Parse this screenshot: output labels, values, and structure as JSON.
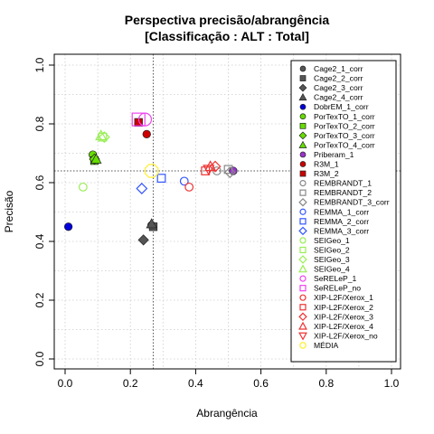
{
  "chart_data": {
    "type": "scatter",
    "title": "Perspectiva precisão/abrangência",
    "subtitle": "[Classificação : ALT : Total]",
    "xlabel": "Abrangência",
    "ylabel": "Precisão",
    "xlim": [
      0,
      1
    ],
    "ylim": [
      0,
      1
    ],
    "xticks": [
      "0.0",
      "0.2",
      "0.4",
      "0.6",
      "0.8",
      "1.0"
    ],
    "yticks": [
      "0.0",
      "0.2",
      "0.4",
      "0.6",
      "0.8",
      "1.0"
    ],
    "grid": true,
    "legend_position": "right",
    "reference_lines": {
      "x": 0.27,
      "y": 0.64
    },
    "series": [
      {
        "name": "Cage2_1_corr",
        "shape": "circle",
        "filled": true,
        "color": "#555555",
        "points": [
          [
            0.265,
            0.455
          ]
        ]
      },
      {
        "name": "Cage2_2_corr",
        "shape": "square",
        "filled": true,
        "color": "#555555",
        "points": [
          [
            0.27,
            0.45
          ]
        ]
      },
      {
        "name": "Cage2_3_corr",
        "shape": "diamond",
        "filled": true,
        "color": "#555555",
        "points": [
          [
            0.24,
            0.405
          ]
        ]
      },
      {
        "name": "Cage2_4_corr",
        "shape": "triangle",
        "filled": true,
        "color": "#555555",
        "points": [
          [
            0.265,
            0.46
          ]
        ]
      },
      {
        "name": "DobrEM_1_corr",
        "shape": "circle",
        "filled": true,
        "color": "#0000dd",
        "points": [
          [
            0.01,
            0.45
          ]
        ]
      },
      {
        "name": "PorTexTO_1_corr",
        "shape": "circle",
        "filled": true,
        "color": "#66dd00",
        "points": [
          [
            0.085,
            0.695
          ]
        ]
      },
      {
        "name": "PorTexTO_2_corr",
        "shape": "square",
        "filled": true,
        "color": "#66dd00",
        "points": [
          [
            0.09,
            0.675
          ]
        ]
      },
      {
        "name": "PorTexTO_3_corr",
        "shape": "diamond",
        "filled": true,
        "color": "#66dd00",
        "points": [
          [
            0.09,
            0.68
          ]
        ]
      },
      {
        "name": "PorTexTO_4_corr",
        "shape": "triangle",
        "filled": true,
        "color": "#66dd00",
        "points": [
          [
            0.095,
            0.68
          ]
        ]
      },
      {
        "name": "Priberam_1",
        "shape": "circle",
        "filled": true,
        "color": "#9933cc",
        "points": [
          [
            0.515,
            0.64
          ]
        ]
      },
      {
        "name": "R3M_1",
        "shape": "circle",
        "filled": true,
        "color": "#cc0000",
        "points": [
          [
            0.25,
            0.765
          ]
        ]
      },
      {
        "name": "R3M_2",
        "shape": "square",
        "filled": true,
        "color": "#cc0000",
        "points": [
          [
            0.225,
            0.805
          ]
        ]
      },
      {
        "name": "REMBRANDT_1",
        "shape": "circle",
        "filled": false,
        "color": "#888888",
        "points": [
          [
            0.465,
            0.64
          ]
        ]
      },
      {
        "name": "REMBRANDT_2",
        "shape": "square",
        "filled": false,
        "color": "#888888",
        "points": [
          [
            0.5,
            0.645
          ]
        ]
      },
      {
        "name": "REMBRANDT_3_corr",
        "shape": "diamond",
        "filled": false,
        "color": "#888888",
        "points": [
          [
            0.505,
            0.635
          ]
        ]
      },
      {
        "name": "REMMA_1_corr",
        "shape": "circle",
        "filled": false,
        "color": "#3355ff",
        "points": [
          [
            0.365,
            0.605
          ]
        ]
      },
      {
        "name": "REMMA_2_corr",
        "shape": "square",
        "filled": false,
        "color": "#3355ff",
        "points": [
          [
            0.295,
            0.615
          ]
        ]
      },
      {
        "name": "REMMA_3_corr",
        "shape": "diamond",
        "filled": false,
        "color": "#3355ff",
        "points": [
          [
            0.235,
            0.58
          ]
        ]
      },
      {
        "name": "SEIGeo_1",
        "shape": "circle",
        "filled": false,
        "color": "#99ee55",
        "points": [
          [
            0.055,
            0.585
          ]
        ]
      },
      {
        "name": "SEIGeo_2",
        "shape": "square",
        "filled": false,
        "color": "#99ee55",
        "points": [
          [
            0.115,
            0.755
          ]
        ]
      },
      {
        "name": "SEIGeo_3",
        "shape": "diamond",
        "filled": false,
        "color": "#99ee55",
        "points": [
          [
            0.12,
            0.755
          ]
        ]
      },
      {
        "name": "SEIGeo_4",
        "shape": "triangle",
        "filled": false,
        "color": "#99ee55",
        "points": [
          [
            0.11,
            0.76
          ]
        ]
      },
      {
        "name": "SeRELeP_1",
        "shape": "circle",
        "filled": false,
        "color": "#ee44ee",
        "points": [
          [
            0.245,
            0.815
          ]
        ]
      },
      {
        "name": "SeRELeP_no",
        "shape": "square",
        "filled": false,
        "color": "#ee44ee",
        "points": [
          [
            0.225,
            0.815
          ]
        ]
      },
      {
        "name": "XIP-L2F/Xerox_1",
        "shape": "circle",
        "filled": false,
        "color": "#ee3333",
        "points": [
          [
            0.38,
            0.585
          ]
        ]
      },
      {
        "name": "XIP-L2F/Xerox_2",
        "shape": "square",
        "filled": false,
        "color": "#ee3333",
        "points": [
          [
            0.43,
            0.64
          ]
        ]
      },
      {
        "name": "XIP-L2F/Xerox_3",
        "shape": "diamond",
        "filled": false,
        "color": "#ee3333",
        "points": [
          [
            0.46,
            0.655
          ]
        ]
      },
      {
        "name": "XIP-L2F/Xerox_4",
        "shape": "triangle",
        "filled": false,
        "color": "#ee3333",
        "points": [
          [
            0.445,
            0.655
          ]
        ]
      },
      {
        "name": "XIP-L2F/Xerox_no",
        "shape": "triangle-down",
        "filled": false,
        "color": "#ee3333",
        "points": [
          [
            0.44,
            0.645
          ]
        ]
      },
      {
        "name": "MÉDIA",
        "shape": "star",
        "filled": false,
        "color": "#ffee33",
        "points": [
          [
            0.265,
            0.64
          ]
        ]
      }
    ]
  }
}
